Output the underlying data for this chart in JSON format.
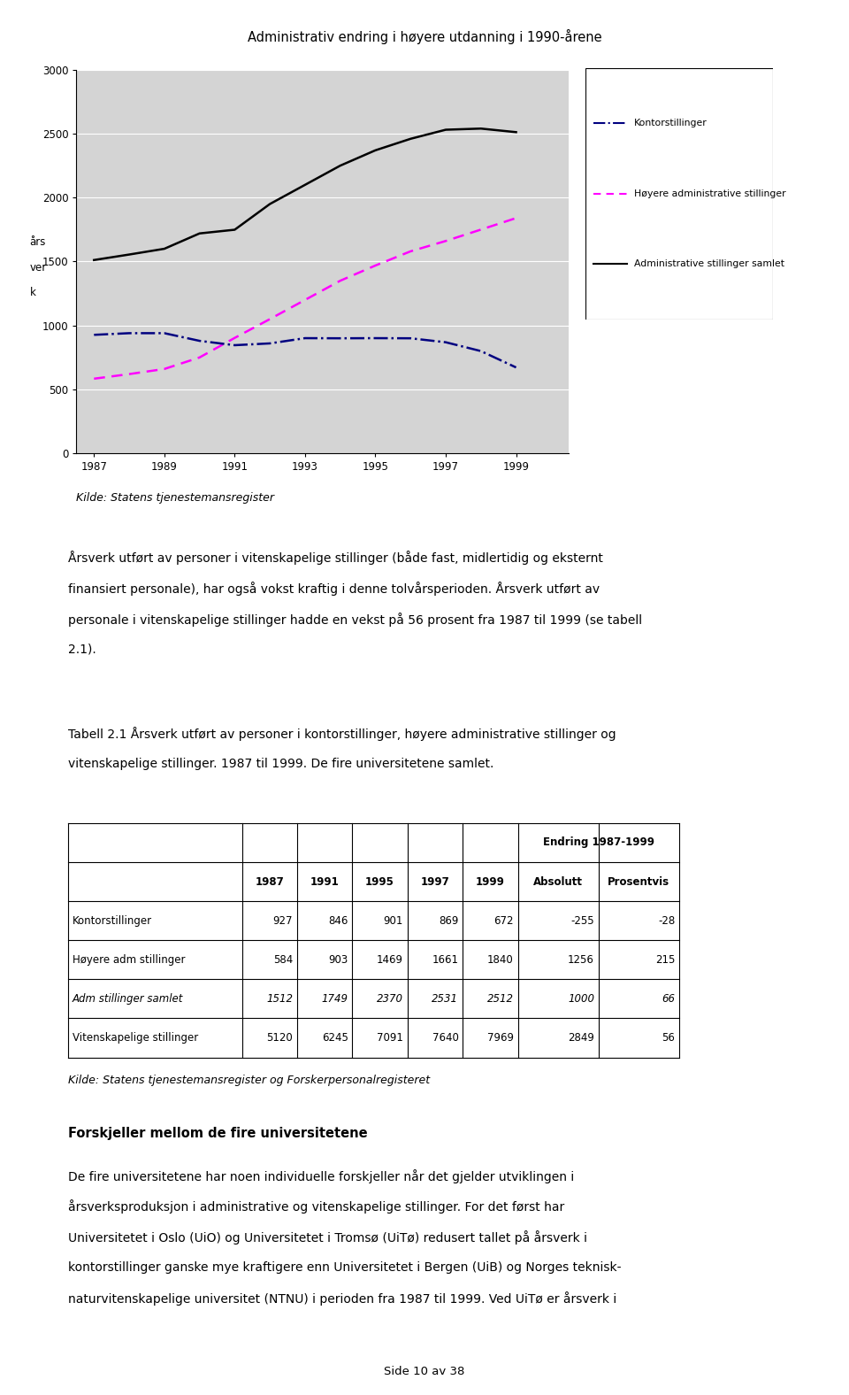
{
  "page_title": "Administrativ endring i høyere utdanning i 1990-årene",
  "years": [
    1987,
    1988,
    1989,
    1990,
    1991,
    1992,
    1993,
    1994,
    1995,
    1996,
    1997,
    1998,
    1999
  ],
  "kontorstillinger": [
    927,
    940,
    940,
    880,
    846,
    860,
    901,
    900,
    901,
    900,
    869,
    800,
    672
  ],
  "hoyere_adm": [
    584,
    620,
    660,
    750,
    903,
    1050,
    1200,
    1350,
    1469,
    1580,
    1661,
    1750,
    1840
  ],
  "adm_samlet": [
    1512,
    1555,
    1600,
    1720,
    1749,
    1950,
    2100,
    2250,
    2370,
    2460,
    2531,
    2540,
    2512
  ],
  "ylim": [
    0,
    3000
  ],
  "yticks": [
    0,
    500,
    1000,
    1500,
    2000,
    2500,
    3000
  ],
  "xticks": [
    1987,
    1989,
    1991,
    1993,
    1995,
    1997,
    1999
  ],
  "ylabel_lines": [
    "års",
    "ver",
    "k"
  ],
  "legend_labels": [
    "Kontorstillinger",
    "Høyere administrative stillinger",
    "Administrative stillinger samlet"
  ],
  "source_text": "Kilde: Statens tjenestemansregister",
  "para1_lines": [
    "Årsverk utført av personer i vitenskapelige stillinger (både fast, midlertidig og eksternt",
    "finansiert personale), har også vokst kraftig i denne tolvårsperioden. Årsverk utført av",
    "personale i vitenskapelige stillinger hadde en vekst på 56 prosent fra 1987 til 1999 (se tabell",
    "2.1)."
  ],
  "tabell_title_lines": [
    "Tabell 2.1 Årsverk utført av personer i kontorstillinger, høyere administrative stillinger og",
    "vitenskapelige stillinger. 1987 til 1999. De fire universitetene samlet."
  ],
  "table_col_headers": [
    "1987",
    "1991",
    "1995",
    "1997",
    "1999",
    "Absolutt",
    "Prosentvis"
  ],
  "table_subheader": "Endring 1987-1999",
  "table_rows": [
    [
      "Kontorstillinger",
      "927",
      "846",
      "901",
      "869",
      "672",
      "-255",
      "-28"
    ],
    [
      "Høyere adm stillinger",
      "584",
      "903",
      "1469",
      "1661",
      "1840",
      "1256",
      "215"
    ],
    [
      "Adm stillinger samlet",
      "1512",
      "1749",
      "2370",
      "2531",
      "2512",
      "1000",
      "66"
    ],
    [
      "Vitenskapelige stillinger",
      "5120",
      "6245",
      "7091",
      "7640",
      "7969",
      "2849",
      "56"
    ]
  ],
  "italic_rows": [
    2
  ],
  "kilde2": "Kilde: Statens tjenestemansregister og Forskerpersonalregisteret",
  "forskjeller_title": "Forskjeller mellom de fire universitetene",
  "forskjeller_lines": [
    "De fire universitetene har noen individuelle forskjeller når det gjelder utviklingen i",
    "årsverksproduksjon i administrative og vitenskapelige stillinger. For det først har",
    "Universitetet i Oslo (UiO) og Universitetet i Tromsø (UiTø) redusert tallet på årsverk i",
    "kontorstillinger ganske mye kraftigere enn Universitetet i Bergen (UiB) og Norges teknisk-",
    "naturvitenskapelige universitet (NTNU) i perioden fra 1987 til 1999. Ved UiTø er årsverk i"
  ],
  "page_footer": "Side 10 av 38",
  "chart_bg": "#d4d4d4",
  "kontor_color": "#000080",
  "hoyere_color": "#ff00ff",
  "samlet_color": "#000000"
}
